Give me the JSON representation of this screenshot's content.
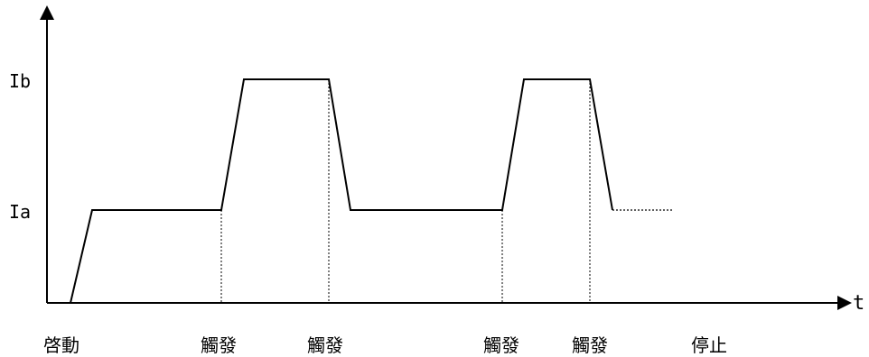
{
  "y_labels": {
    "high": "Ib",
    "low": "Ia"
  },
  "x_axis_label": "t",
  "events": [
    {
      "label": "啓動",
      "t": 0
    },
    {
      "label": "觸發",
      "t": 1
    },
    {
      "label": "觸發",
      "t": 2
    },
    {
      "label": "觸發",
      "t": 3
    },
    {
      "label": "觸發",
      "t": 4
    },
    {
      "label": "停止",
      "t": 5
    }
  ],
  "colors": {
    "line": "#000000",
    "background": "#ffffff"
  }
}
